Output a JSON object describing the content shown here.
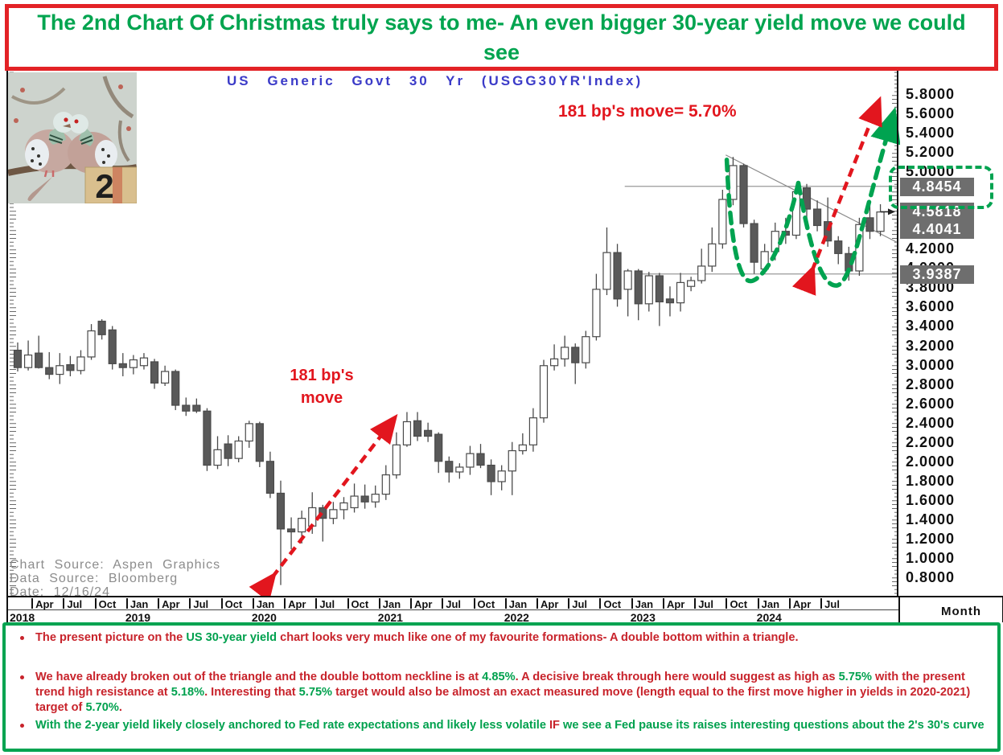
{
  "colors": {
    "banner_green": "#00A44F",
    "border_red": "#E32226",
    "annotation_red": "#E2161E",
    "text_red": "#C8232B",
    "text_green": "#00A14E",
    "chart_title_blue": "#3B3BC8",
    "candle_fill": "#595959",
    "candle_stroke": "#4A4A4A",
    "level_line_gray": "#9A9A9A",
    "source_gray": "#8C8C8C",
    "highlight_label_bg": "#6E6E6E",
    "pattern_green": "#00A350"
  },
  "banner": {
    "title": "The 2nd Chart Of Christmas truly says to me- An even bigger 30-year yield move we could see"
  },
  "dove_image": {
    "badge_number": "2",
    "description": "two turtle doves on a branch"
  },
  "header": {
    "chart_title": "US Generic Govt 30 Yr (USGG30YR'Index)"
  },
  "annotations": {
    "target_label": "181 bp's move= 5.70%",
    "move_label_line1": "181 bp's",
    "move_label_line2": "move"
  },
  "source": {
    "lines": [
      "Chart Source: Aspen Graphics",
      "Data Source: Bloomberg",
      "Date: 12/16/24"
    ]
  },
  "y_axis": {
    "tick_labels": [
      "5.8000",
      "5.6000",
      "5.4000",
      "5.2000",
      "5.0000",
      "4.8000",
      "4.6000",
      "4.4000",
      "4.2000",
      "4.0000",
      "3.8000",
      "3.6000",
      "3.4000",
      "3.2000",
      "3.0000",
      "2.8000",
      "2.6000",
      "2.4000",
      "2.2000",
      "2.0000",
      "1.8000",
      "1.6000",
      "1.4000",
      "1.2000",
      "1.0000",
      "0.8000"
    ],
    "highlights": [
      {
        "label": "4.8454",
        "value": 4.8454,
        "boxed": true
      },
      {
        "label": "4.5818",
        "value": 4.5818,
        "arrow_marker": true
      },
      {
        "label": "4.4041",
        "value": 4.4041
      },
      {
        "label": "3.9387",
        "value": 3.9387
      }
    ]
  },
  "x_axis": {
    "unit_label": "Month",
    "months": [
      {
        "label": "Apr",
        "i": 2
      },
      {
        "label": "Jul",
        "i": 5
      },
      {
        "label": "Oct",
        "i": 8
      },
      {
        "label": "Jan",
        "i": 11
      },
      {
        "label": "Apr",
        "i": 14
      },
      {
        "label": "Jul",
        "i": 17
      },
      {
        "label": "Oct",
        "i": 20
      },
      {
        "label": "Jan",
        "i": 23
      },
      {
        "label": "Apr",
        "i": 26
      },
      {
        "label": "Jul",
        "i": 29
      },
      {
        "label": "Oct",
        "i": 32
      },
      {
        "label": "Jan",
        "i": 35
      },
      {
        "label": "Apr",
        "i": 38
      },
      {
        "label": "Jul",
        "i": 41
      },
      {
        "label": "Oct",
        "i": 44
      },
      {
        "label": "Jan",
        "i": 47
      },
      {
        "label": "Apr",
        "i": 50
      },
      {
        "label": "Jul",
        "i": 53
      },
      {
        "label": "Oct",
        "i": 56
      },
      {
        "label": "Jan",
        "i": 59
      },
      {
        "label": "Apr",
        "i": 62
      },
      {
        "label": "Jul",
        "i": 65
      },
      {
        "label": "Oct",
        "i": 68
      },
      {
        "label": "Jan",
        "i": 71
      },
      {
        "label": "Apr",
        "i": 74
      },
      {
        "label": "Jul",
        "i": 77
      }
    ],
    "years": [
      {
        "label": "2018",
        "i": 0
      },
      {
        "label": "2019",
        "i": 11
      },
      {
        "label": "2020",
        "i": 23
      },
      {
        "label": "2021",
        "i": 35
      },
      {
        "label": "2022",
        "i": 47
      },
      {
        "label": "2023",
        "i": 59
      },
      {
        "label": "2024",
        "i": 71
      }
    ]
  },
  "chart_data": {
    "type": "candlestick",
    "title": "US Generic Govt 30 Yr (USGG30YR'Index)",
    "x_unit": "Month",
    "periodicity": "monthly",
    "start_month": "2018-02",
    "end_month": "2024-12",
    "ylim": [
      0.8,
      5.8
    ],
    "y_tick_step": 0.2,
    "last_price": 4.5818,
    "marked_prices": [
      4.8454,
      4.5818,
      4.4041,
      3.9387
    ],
    "ohlc": [
      [
        3.15,
        3.23,
        2.93,
        2.97
      ],
      [
        2.97,
        3.25,
        2.94,
        3.1
      ],
      [
        3.12,
        3.3,
        2.96,
        2.97
      ],
      [
        2.97,
        3.13,
        2.85,
        2.9
      ],
      [
        2.9,
        3.12,
        2.8,
        2.99
      ],
      [
        3.0,
        3.09,
        2.88,
        2.94
      ],
      [
        2.94,
        3.15,
        2.9,
        3.08
      ],
      [
        3.08,
        3.42,
        3.05,
        3.35
      ],
      [
        3.45,
        3.47,
        3.26,
        3.31
      ],
      [
        3.36,
        3.4,
        2.95,
        3.01
      ],
      [
        3.01,
        3.12,
        2.88,
        2.97
      ],
      [
        2.97,
        3.1,
        2.9,
        3.05
      ],
      [
        2.99,
        3.12,
        2.95,
        3.07
      ],
      [
        3.03,
        3.06,
        2.75,
        2.81
      ],
      [
        2.81,
        2.99,
        2.78,
        2.93
      ],
      [
        2.93,
        2.95,
        2.53,
        2.58
      ],
      [
        2.58,
        2.66,
        2.47,
        2.52
      ],
      [
        2.58,
        2.65,
        2.5,
        2.52
      ],
      [
        2.52,
        2.55,
        1.9,
        1.96
      ],
      [
        1.96,
        2.26,
        1.92,
        2.12
      ],
      [
        2.18,
        2.27,
        1.95,
        2.03
      ],
      [
        2.03,
        2.26,
        1.99,
        2.21
      ],
      [
        2.21,
        2.42,
        2.14,
        2.39
      ],
      [
        2.39,
        2.41,
        1.94,
        2.0
      ],
      [
        2.0,
        2.1,
        1.62,
        1.67
      ],
      [
        1.67,
        1.8,
        0.72,
        1.3
      ],
      [
        1.3,
        1.42,
        1.09,
        1.27
      ],
      [
        1.27,
        1.49,
        1.15,
        1.41
      ],
      [
        1.33,
        1.68,
        1.25,
        1.52
      ],
      [
        1.52,
        1.55,
        1.17,
        1.41
      ],
      [
        1.41,
        1.58,
        1.35,
        1.5
      ],
      [
        1.5,
        1.63,
        1.4,
        1.57
      ],
      [
        1.52,
        1.77,
        1.47,
        1.64
      ],
      [
        1.64,
        1.76,
        1.51,
        1.58
      ],
      [
        1.58,
        1.75,
        1.52,
        1.66
      ],
      [
        1.66,
        1.96,
        1.6,
        1.86
      ],
      [
        1.86,
        2.3,
        1.82,
        2.17
      ],
      [
        2.17,
        2.51,
        2.15,
        2.41
      ],
      [
        2.42,
        2.51,
        2.21,
        2.26
      ],
      [
        2.32,
        2.4,
        2.2,
        2.26
      ],
      [
        2.28,
        2.3,
        1.88,
        2.0
      ],
      [
        2.0,
        2.05,
        1.78,
        1.89
      ],
      [
        1.89,
        1.98,
        1.82,
        1.94
      ],
      [
        1.94,
        2.16,
        1.86,
        2.08
      ],
      [
        2.08,
        2.18,
        1.93,
        1.96
      ],
      [
        1.96,
        2.02,
        1.65,
        1.79
      ],
      [
        1.79,
        1.96,
        1.7,
        1.9
      ],
      [
        1.9,
        2.2,
        1.65,
        2.11
      ],
      [
        2.11,
        2.29,
        2.07,
        2.17
      ],
      [
        2.17,
        2.55,
        2.1,
        2.45
      ],
      [
        2.45,
        3.05,
        2.4,
        2.99
      ],
      [
        2.99,
        3.21,
        2.94,
        3.06
      ],
      [
        3.06,
        3.3,
        2.98,
        3.18
      ],
      [
        3.18,
        3.22,
        2.8,
        3.02
      ],
      [
        3.02,
        3.35,
        2.96,
        3.29
      ],
      [
        3.29,
        3.94,
        3.25,
        3.78
      ],
      [
        3.78,
        4.42,
        3.72,
        4.16
      ],
      [
        4.16,
        4.25,
        3.6,
        3.68
      ],
      [
        3.78,
        3.99,
        3.5,
        3.97
      ],
      [
        3.97,
        3.99,
        3.46,
        3.63
      ],
      [
        3.63,
        3.96,
        3.55,
        3.92
      ],
      [
        3.92,
        3.95,
        3.4,
        3.65
      ],
      [
        3.68,
        3.81,
        3.5,
        3.64
      ],
      [
        3.64,
        3.95,
        3.55,
        3.85
      ],
      [
        3.81,
        3.91,
        3.76,
        3.87
      ],
      [
        3.87,
        4.2,
        3.84,
        4.02
      ],
      [
        4.02,
        4.42,
        3.96,
        4.25
      ],
      [
        4.25,
        4.81,
        4.2,
        4.71
      ],
      [
        4.71,
        5.15,
        4.65,
        5.06
      ],
      [
        5.06,
        5.08,
        4.42,
        4.46
      ],
      [
        4.46,
        4.5,
        3.94,
        4.06
      ],
      [
        3.99,
        4.25,
        3.94,
        4.17
      ],
      [
        4.17,
        4.47,
        4.08,
        4.38
      ],
      [
        4.38,
        4.52,
        4.25,
        4.34
      ],
      [
        4.34,
        4.85,
        4.3,
        4.79
      ],
      [
        4.83,
        4.87,
        4.42,
        4.61
      ],
      [
        4.61,
        4.7,
        4.38,
        4.44
      ],
      [
        4.48,
        4.73,
        4.22,
        4.28
      ],
      [
        4.28,
        4.33,
        4.04,
        4.15
      ],
      [
        4.15,
        4.22,
        3.87,
        3.97
      ],
      [
        3.97,
        4.52,
        3.92,
        4.45
      ],
      [
        4.52,
        4.68,
        4.3,
        4.38
      ],
      [
        4.38,
        4.66,
        4.33,
        4.58
      ]
    ],
    "levels": [
      {
        "name": "double-bottom-neckline",
        "value": 4.8454,
        "from_index": 57.7
      },
      {
        "name": "double-bottom-support",
        "value": 3.9387,
        "from_index": 58.8
      }
    ],
    "trendline": {
      "name": "triangle-upper-boundary",
      "from": {
        "i": 67.3,
        "v": 5.17
      },
      "to": {
        "i": 83.7,
        "v": 4.26
      }
    },
    "pattern_curves": [
      {
        "name": "first-bottom",
        "color": "#00A350",
        "points": [
          [
            67.4,
            5.12
          ],
          [
            67.8,
            4.1
          ],
          [
            68.8,
            3.82
          ],
          [
            69.9,
            3.87
          ],
          [
            71.0,
            3.92
          ],
          [
            72.8,
            4.2
          ],
          [
            74.2,
            4.88
          ]
        ],
        "arrow_end": false
      },
      {
        "name": "second-bottom-breakout",
        "color": "#00A350",
        "points": [
          [
            74.2,
            4.88
          ],
          [
            75.4,
            4.15
          ],
          [
            76.5,
            3.8
          ],
          [
            77.9,
            3.82
          ],
          [
            79.3,
            3.86
          ],
          [
            80.3,
            4.5
          ],
          [
            83.2,
            5.58
          ]
        ],
        "arrow_end": true
      }
    ],
    "arrows": [
      {
        "name": "measured-move-2020-2021",
        "color": "#E2161E",
        "from": {
          "i": 24.2,
          "v": 0.8
        },
        "to": {
          "i": 35.7,
          "v": 2.43
        },
        "heads": "both"
      },
      {
        "name": "projected-move-to-5.70",
        "color": "#E2161E",
        "from": {
          "i": 75.5,
          "v": 3.97
        },
        "to": {
          "i": 81.8,
          "v": 5.71
        },
        "heads": "both"
      }
    ]
  },
  "panel": {
    "bullets": [
      {
        "dot": "red",
        "segments": [
          {
            "text": "The present picture on the ",
            "color": "red"
          },
          {
            "text": "US 30-year yield",
            "color": "green"
          },
          {
            "text": " chart looks very much like one of my favourite formations- A double bottom within a triangle.",
            "color": "red"
          }
        ]
      },
      {
        "dot": "red",
        "segments": [
          {
            "text": "We have already broken out of the triangle and the double bottom neckline is at ",
            "color": "red"
          },
          {
            "text": "4.85%",
            "color": "green"
          },
          {
            "text": ". A decisive break through here would suggest as high as ",
            "color": "red"
          },
          {
            "text": "5.75%",
            "color": "green"
          },
          {
            "text": " with the present trend high resistance at ",
            "color": "red"
          },
          {
            "text": "5.18%",
            "color": "green"
          },
          {
            "text": ". Interesting that ",
            "color": "red"
          },
          {
            "text": "5.75%",
            "color": "green"
          },
          {
            "text": " target would also be almost an exact measured move (length equal to the first move higher in yields  in 2020-2021) target of ",
            "color": "red"
          },
          {
            "text": "5.70%",
            "color": "green"
          },
          {
            "text": ".",
            "color": "red"
          }
        ]
      },
      {
        "dot": "red",
        "segments": [
          {
            "text": "With the 2-year yield likely closely anchored to Fed rate expectations and likely less volatile ",
            "color": "green"
          },
          {
            "text": "IF",
            "color": "red"
          },
          {
            "text": " we see a Fed pause its raises interesting questions about the 2's 30's curve",
            "color": "green"
          }
        ]
      }
    ]
  }
}
